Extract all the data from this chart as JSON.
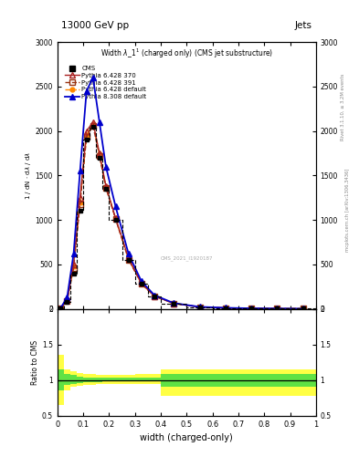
{
  "title_top": "13000 GeV pp",
  "title_right": "Jets",
  "plot_title": "Width $\\lambda$_1$^1$ (charged only) (CMS jet substructure)",
  "xlabel": "width (charged-only)",
  "ylabel_ratio": "Ratio to CMS",
  "right_label_top": "Rivet 3.1.10, ≥ 3.2M events",
  "right_label_bot": "mcplots.cern.ch [arXiv:1306.3436]",
  "xlim": [
    0.0,
    1.0
  ],
  "ylim_main": [
    0,
    3000
  ],
  "ylim_ratio": [
    0.5,
    2.0
  ],
  "x_bins": [
    0.0,
    0.025,
    0.05,
    0.075,
    0.1,
    0.125,
    0.15,
    0.175,
    0.2,
    0.25,
    0.3,
    0.35,
    0.4,
    0.5,
    0.6,
    0.7,
    0.8,
    0.9,
    1.0
  ],
  "cms_values": [
    5,
    80,
    400,
    1100,
    1900,
    2050,
    1700,
    1350,
    1000,
    550,
    280,
    140,
    60,
    20,
    10,
    5,
    3,
    2
  ],
  "p6_370_values": [
    8,
    100,
    500,
    1250,
    2000,
    2100,
    1750,
    1380,
    1020,
    570,
    290,
    145,
    62,
    22,
    11,
    6,
    3,
    2
  ],
  "p6_391_values": [
    6,
    90,
    460,
    1180,
    1930,
    2060,
    1720,
    1360,
    1010,
    555,
    282,
    142,
    61,
    21,
    10,
    5,
    3,
    2
  ],
  "p6_def_values": [
    7,
    95,
    480,
    1200,
    1950,
    2080,
    1740,
    1370,
    1015,
    560,
    285,
    143,
    61,
    21,
    10,
    5,
    3,
    2
  ],
  "p8_def_values": [
    10,
    130,
    620,
    1550,
    2450,
    2600,
    2100,
    1600,
    1150,
    620,
    310,
    155,
    65,
    23,
    12,
    6,
    4,
    2
  ],
  "ratio_yellow_lo": [
    0.65,
    0.85,
    0.9,
    0.92,
    0.93,
    0.93,
    0.94,
    0.94,
    0.95,
    0.95,
    0.95,
    0.95,
    0.78,
    0.78,
    0.78,
    0.78,
    0.78,
    0.78
  ],
  "ratio_yellow_hi": [
    1.35,
    1.15,
    1.12,
    1.1,
    1.09,
    1.08,
    1.07,
    1.07,
    1.07,
    1.07,
    1.08,
    1.08,
    1.15,
    1.15,
    1.15,
    1.15,
    1.15,
    1.15
  ],
  "ratio_green_lo": [
    0.85,
    0.93,
    0.95,
    0.96,
    0.97,
    0.97,
    0.97,
    0.98,
    0.98,
    0.98,
    0.98,
    0.98,
    0.9,
    0.9,
    0.9,
    0.9,
    0.9,
    0.9
  ],
  "ratio_green_hi": [
    1.15,
    1.08,
    1.07,
    1.05,
    1.04,
    1.04,
    1.04,
    1.04,
    1.04,
    1.04,
    1.04,
    1.04,
    1.08,
    1.08,
    1.08,
    1.08,
    1.08,
    1.08
  ],
  "color_cms": "#000000",
  "color_p6_370": "#aa2222",
  "color_p6_391": "#993311",
  "color_p6_def": "#ff8800",
  "color_p8_def": "#0000cc",
  "color_yellow": "#ffff44",
  "color_green": "#44dd44",
  "watermark": "CMS_2021_I1920187"
}
